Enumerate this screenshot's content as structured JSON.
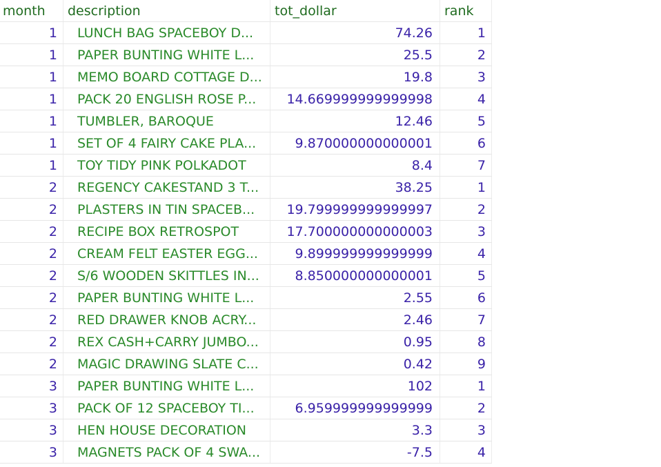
{
  "columns": {
    "month": "month",
    "description": "description",
    "tot_dollar": "tot_dollar",
    "rank": "rank"
  },
  "rows": [
    {
      "month": "1",
      "description": "LUNCH BAG SPACEBOY D...",
      "tot_dollar": "74.26",
      "rank": "1"
    },
    {
      "month": "1",
      "description": "PAPER BUNTING WHITE L...",
      "tot_dollar": "25.5",
      "rank": "2"
    },
    {
      "month": "1",
      "description": "MEMO BOARD COTTAGE D...",
      "tot_dollar": "19.8",
      "rank": "3"
    },
    {
      "month": "1",
      "description": "PACK 20 ENGLISH ROSE P...",
      "tot_dollar": "14.669999999999998",
      "rank": "4"
    },
    {
      "month": "1",
      "description": "TUMBLER, BAROQUE",
      "tot_dollar": "12.46",
      "rank": "5"
    },
    {
      "month": "1",
      "description": "SET OF 4 FAIRY CAKE PLA...",
      "tot_dollar": "9.870000000000001",
      "rank": "6"
    },
    {
      "month": "1",
      "description": "TOY TIDY PINK POLKADOT",
      "tot_dollar": "8.4",
      "rank": "7"
    },
    {
      "month": "2",
      "description": "REGENCY CAKESTAND 3 T...",
      "tot_dollar": "38.25",
      "rank": "1"
    },
    {
      "month": "2",
      "description": "PLASTERS IN TIN SPACEB...",
      "tot_dollar": "19.799999999999997",
      "rank": "2"
    },
    {
      "month": "2",
      "description": "RECIPE BOX RETROSPOT",
      "tot_dollar": "17.700000000000003",
      "rank": "3"
    },
    {
      "month": "2",
      "description": "CREAM FELT EASTER EGG...",
      "tot_dollar": "9.899999999999999",
      "rank": "4"
    },
    {
      "month": "2",
      "description": "S/6 WOODEN SKITTLES IN...",
      "tot_dollar": "8.850000000000001",
      "rank": "5"
    },
    {
      "month": "2",
      "description": "PAPER BUNTING WHITE L...",
      "tot_dollar": "2.55",
      "rank": "6"
    },
    {
      "month": "2",
      "description": "RED DRAWER KNOB ACRY...",
      "tot_dollar": "2.46",
      "rank": "7"
    },
    {
      "month": "2",
      "description": "REX CASH+CARRY JUMBO...",
      "tot_dollar": "0.95",
      "rank": "8"
    },
    {
      "month": "2",
      "description": "MAGIC DRAWING SLATE C...",
      "tot_dollar": "0.42",
      "rank": "9"
    },
    {
      "month": "3",
      "description": "PAPER BUNTING WHITE L...",
      "tot_dollar": "102",
      "rank": "1"
    },
    {
      "month": "3",
      "description": "PACK OF 12 SPACEBOY TI...",
      "tot_dollar": "6.959999999999999",
      "rank": "2"
    },
    {
      "month": "3",
      "description": "HEN HOUSE DECORATION",
      "tot_dollar": "3.3",
      "rank": "3"
    },
    {
      "month": "3",
      "description": "MAGNETS PACK OF 4 SWA...",
      "tot_dollar": "-7.5",
      "rank": "4"
    }
  ],
  "colors": {
    "header_text": "#1f6b1f",
    "text_cell": "#2a8a2a",
    "number_cell": "#3a22a8",
    "grid_line": "#e6e6e6"
  }
}
